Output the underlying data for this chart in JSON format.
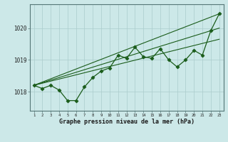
{
  "x": [
    1,
    2,
    3,
    4,
    5,
    6,
    7,
    8,
    9,
    10,
    11,
    12,
    13,
    14,
    15,
    16,
    17,
    18,
    19,
    20,
    21,
    22,
    23
  ],
  "line_main": [
    1018.2,
    1018.1,
    1018.2,
    1018.05,
    1017.72,
    1017.72,
    1018.15,
    1018.45,
    1018.65,
    1018.75,
    1019.15,
    1019.05,
    1019.4,
    1019.1,
    1019.05,
    1019.35,
    1019.0,
    1018.78,
    1019.0,
    1019.3,
    1019.15,
    1019.92,
    1020.45
  ],
  "trend1_x": [
    1,
    23
  ],
  "trend1_y": [
    1018.2,
    1020.45
  ],
  "trend2_x": [
    1,
    23
  ],
  "trend2_y": [
    1018.2,
    1020.0
  ],
  "trend3_x": [
    1,
    23
  ],
  "trend3_y": [
    1018.2,
    1019.65
  ],
  "bg_color": "#cce8e8",
  "line_color": "#1a5c1a",
  "grid_color": "#aacccc",
  "xlabel": "Graphe pression niveau de la mer (hPa)",
  "yticks": [
    1018,
    1019,
    1020
  ],
  "ylim": [
    1017.4,
    1020.75
  ],
  "xlim": [
    0.5,
    23.5
  ]
}
